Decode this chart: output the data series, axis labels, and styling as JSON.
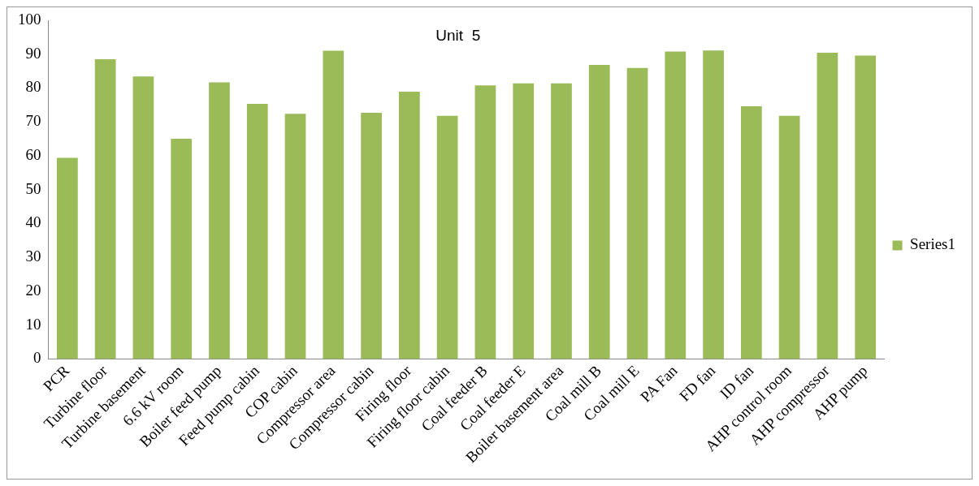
{
  "chart_data": {
    "type": "bar",
    "title": "Unit  5",
    "categories": [
      "PCR",
      "Turbine floor",
      "Turbine basement",
      "6.6 kV room",
      "Boiler feed pump",
      "Feed pump cabin",
      "COP cabin",
      "Compressor area",
      "Compressor cabin",
      "Firing floor",
      "Firing floor cabin",
      "Coal feeder B",
      "Coal feeder E",
      "Boiler basement area",
      "Coal mill B",
      "Coal mill E",
      "PA Fan",
      "FD fan",
      "ID fan",
      "AHP control room",
      "AHP compressor",
      "AHP pump"
    ],
    "series": [
      {
        "name": "Series1",
        "color": "#9bbb59",
        "values": [
          59.4,
          88.5,
          83.4,
          65,
          81.7,
          75.3,
          72.4,
          91,
          72.7,
          78.9,
          71.8,
          80.8,
          81.4,
          81.4,
          86.8,
          85.9,
          90.8,
          91.1,
          74.6,
          71.8,
          90.4,
          89.6
        ]
      }
    ],
    "ylim": [
      0,
      100
    ],
    "yticks": [
      0,
      10,
      20,
      30,
      40,
      50,
      60,
      70,
      80,
      90,
      100
    ],
    "grid": false,
    "legend": "right"
  }
}
